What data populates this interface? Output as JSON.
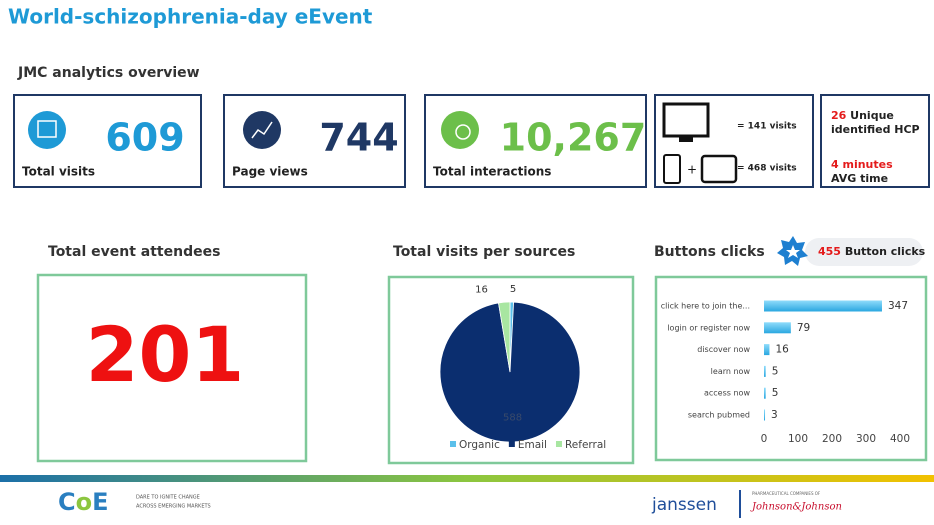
{
  "header": {
    "title": "World-schizophrenia-day eEvent",
    "section": "JMC analytics overview"
  },
  "kpis": [
    {
      "label": "Total visits",
      "value": 609
    },
    {
      "label": "Page views",
      "value": 744
    },
    {
      "label": "Total interactions",
      "value": {
        "value": 10267,
        "label": "10,267"
      }
    }
  ],
  "devices": {
    "desktop": "= 141 visits",
    "mobile": "= 468 visits"
  },
  "hcp": {
    "count": "26",
    "count_text": "Unique",
    "count_text2": "identified HCP",
    "time": "4 minutes",
    "time_text": "AVG time"
  },
  "attendees": {
    "title": "Total event attendees",
    "value": 201
  },
  "badge": {
    "value": 455,
    "text": "Button clicks"
  },
  "footer": {
    "tagline1": "DARE TO IGNITE CHANGE",
    "tagline2": "ACROSS EMERGING MARKETS",
    "brand": "janssen",
    "company_line": "PHARMACEUTICAL COMPANIES OF",
    "company": "Johnson&Johnson"
  },
  "chart_data": [
    {
      "type": "pie",
      "title": "Total visits per sources",
      "categories": [
        "Organic",
        "Email",
        "Referral"
      ],
      "values": [
        5,
        588,
        16
      ],
      "colors": [
        "#5bc0eb",
        "#0b2e6f",
        "#a8e6a1"
      ],
      "legend": "bottom"
    },
    {
      "type": "hbar",
      "title": "Buttons clicks",
      "categories": [
        "click here to join the...",
        "login or register now",
        "discover now",
        "learn now",
        "access now",
        "search pubmed"
      ],
      "values": [
        347,
        79,
        16,
        5,
        5,
        3
      ],
      "color": "#4fc3f7",
      "xlim": [
        0,
        400
      ],
      "xticks": [
        0,
        100,
        200,
        300,
        400
      ]
    }
  ]
}
